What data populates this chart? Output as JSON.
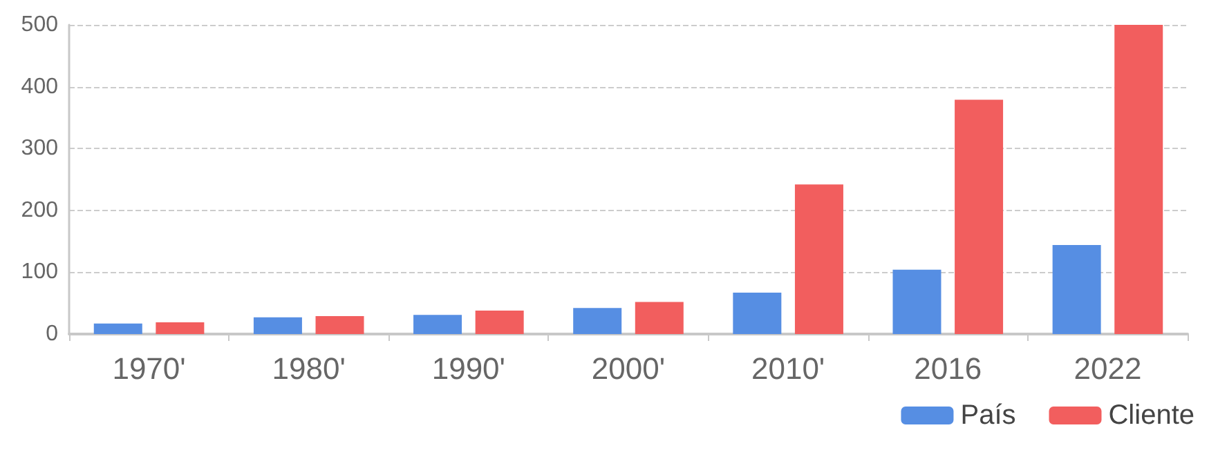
{
  "chart_data": {
    "type": "bar",
    "categories": [
      "1970'",
      "1980'",
      "1990'",
      "2000'",
      "2010'",
      "2016",
      "2022"
    ],
    "series": [
      {
        "name": "País",
        "color": "#568ee3",
        "values": [
          17,
          27,
          31,
          42,
          67,
          104,
          144
        ]
      },
      {
        "name": "Cliente",
        "color": "#f25e5e",
        "values": [
          19,
          29,
          38,
          52,
          242,
          379,
          500
        ]
      }
    ],
    "ylim": [
      0,
      500
    ],
    "yticks": [
      0,
      100,
      200,
      300,
      400,
      500
    ],
    "grid": "y",
    "legend": "bottom right"
  }
}
